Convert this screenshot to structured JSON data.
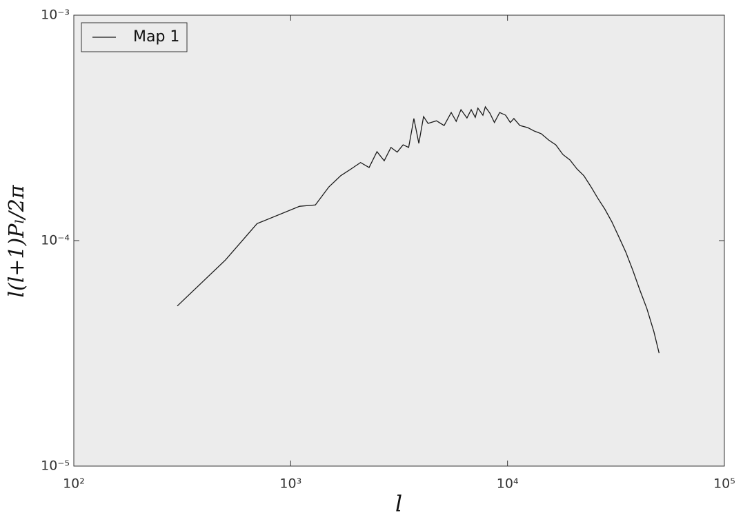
{
  "chart_data": {
    "type": "line",
    "x_label": "l",
    "y_label": "l(l+1)Pₗ/2π",
    "x": [
      300,
      500,
      700,
      1100,
      1300,
      1500,
      1700,
      1900,
      2100,
      2300,
      2500,
      2700,
      2900,
      3100,
      3300,
      3500,
      3700,
      3900,
      4100,
      4300,
      4700,
      5100,
      5500,
      5800,
      6100,
      6500,
      6800,
      7100,
      7300,
      7700,
      7900,
      8300,
      8700,
      9200,
      9800,
      10300,
      10700,
      11400,
      12400,
      13300,
      14300,
      15500,
      16700,
      18000,
      19400,
      20900,
      22500,
      24200,
      26100,
      28100,
      30300,
      32600,
      35100,
      37800,
      40700,
      43900,
      47300,
      50000
    ],
    "series": [
      {
        "name": "Map 1",
        "color": "#1a1a1a",
        "values": [
          5.13e-05,
          8.2e-05,
          0.000119,
          0.000142,
          0.000144,
          0.000173,
          0.000194,
          0.000208,
          0.000222,
          0.000211,
          0.000248,
          0.000226,
          0.000259,
          0.000247,
          0.000266,
          0.000259,
          0.000348,
          0.00027,
          0.000355,
          0.000331,
          0.00034,
          0.000324,
          0.00037,
          0.000338,
          0.000381,
          0.00035,
          0.000381,
          0.000352,
          0.000387,
          0.00036,
          0.000392,
          0.000367,
          0.000334,
          0.00037,
          0.00036,
          0.000334,
          0.000348,
          0.000324,
          0.000317,
          0.000306,
          0.000298,
          0.000279,
          0.000266,
          0.000241,
          0.000228,
          0.000208,
          0.000194,
          0.000174,
          0.000154,
          0.000138,
          0.000121,
          0.000104,
          8.9e-05,
          7.4e-05,
          6.06e-05,
          5e-05,
          3.95e-05,
          3.17e-05
        ]
      }
    ],
    "xlim": [
      100,
      100000
    ],
    "ylim": [
      1e-05,
      0.001
    ],
    "xticks": [
      {
        "value": 100,
        "label": "10²"
      },
      {
        "value": 1000,
        "label": "10³"
      },
      {
        "value": 10000,
        "label": "10⁴"
      },
      {
        "value": 100000,
        "label": "10⁵"
      }
    ],
    "yticks": [
      {
        "value": 1e-05,
        "label": "10⁻⁵"
      },
      {
        "value": 0.0001,
        "label": "10⁻⁴"
      },
      {
        "value": 0.001,
        "label": "10⁻³"
      }
    ],
    "x_scale": "log",
    "y_scale": "log",
    "legend": "upper left",
    "background": "#ececec"
  }
}
